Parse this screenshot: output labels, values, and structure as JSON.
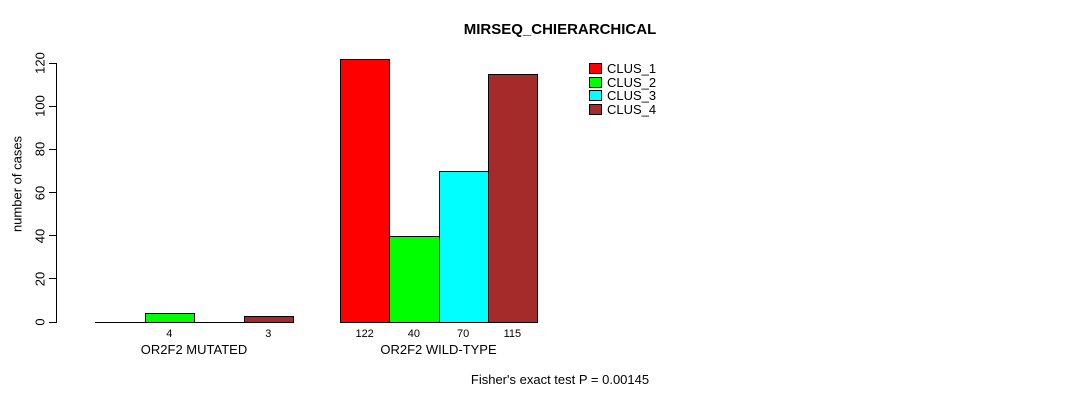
{
  "chart_data": {
    "type": "bar",
    "title": "MIRSEQ_CHIERARCHICAL",
    "ylabel": "number of cases",
    "xlabel": "",
    "ylim": [
      0,
      120
    ],
    "yticks": [
      0,
      20,
      40,
      60,
      80,
      100,
      120
    ],
    "grid": false,
    "legend_position": "top-right-inside",
    "series": [
      {
        "name": "CLUS_1",
        "color": "#FF0000"
      },
      {
        "name": "CLUS_2",
        "color": "#00FF00"
      },
      {
        "name": "CLUS_3",
        "color": "#00FFFF"
      },
      {
        "name": "CLUS_4",
        "color": "#A52A2A"
      }
    ],
    "groups": [
      {
        "label": "OR2F2 MUTATED",
        "values": [
          0,
          4,
          0,
          3
        ],
        "bar_labels": [
          "",
          "4",
          "",
          "3"
        ]
      },
      {
        "label": "OR2F2 WILD-TYPE",
        "values": [
          122,
          40,
          70,
          115
        ],
        "bar_labels": [
          "122",
          "40",
          "70",
          "115"
        ]
      }
    ],
    "annotation": "Fisher's exact test P = 0.00145"
  }
}
